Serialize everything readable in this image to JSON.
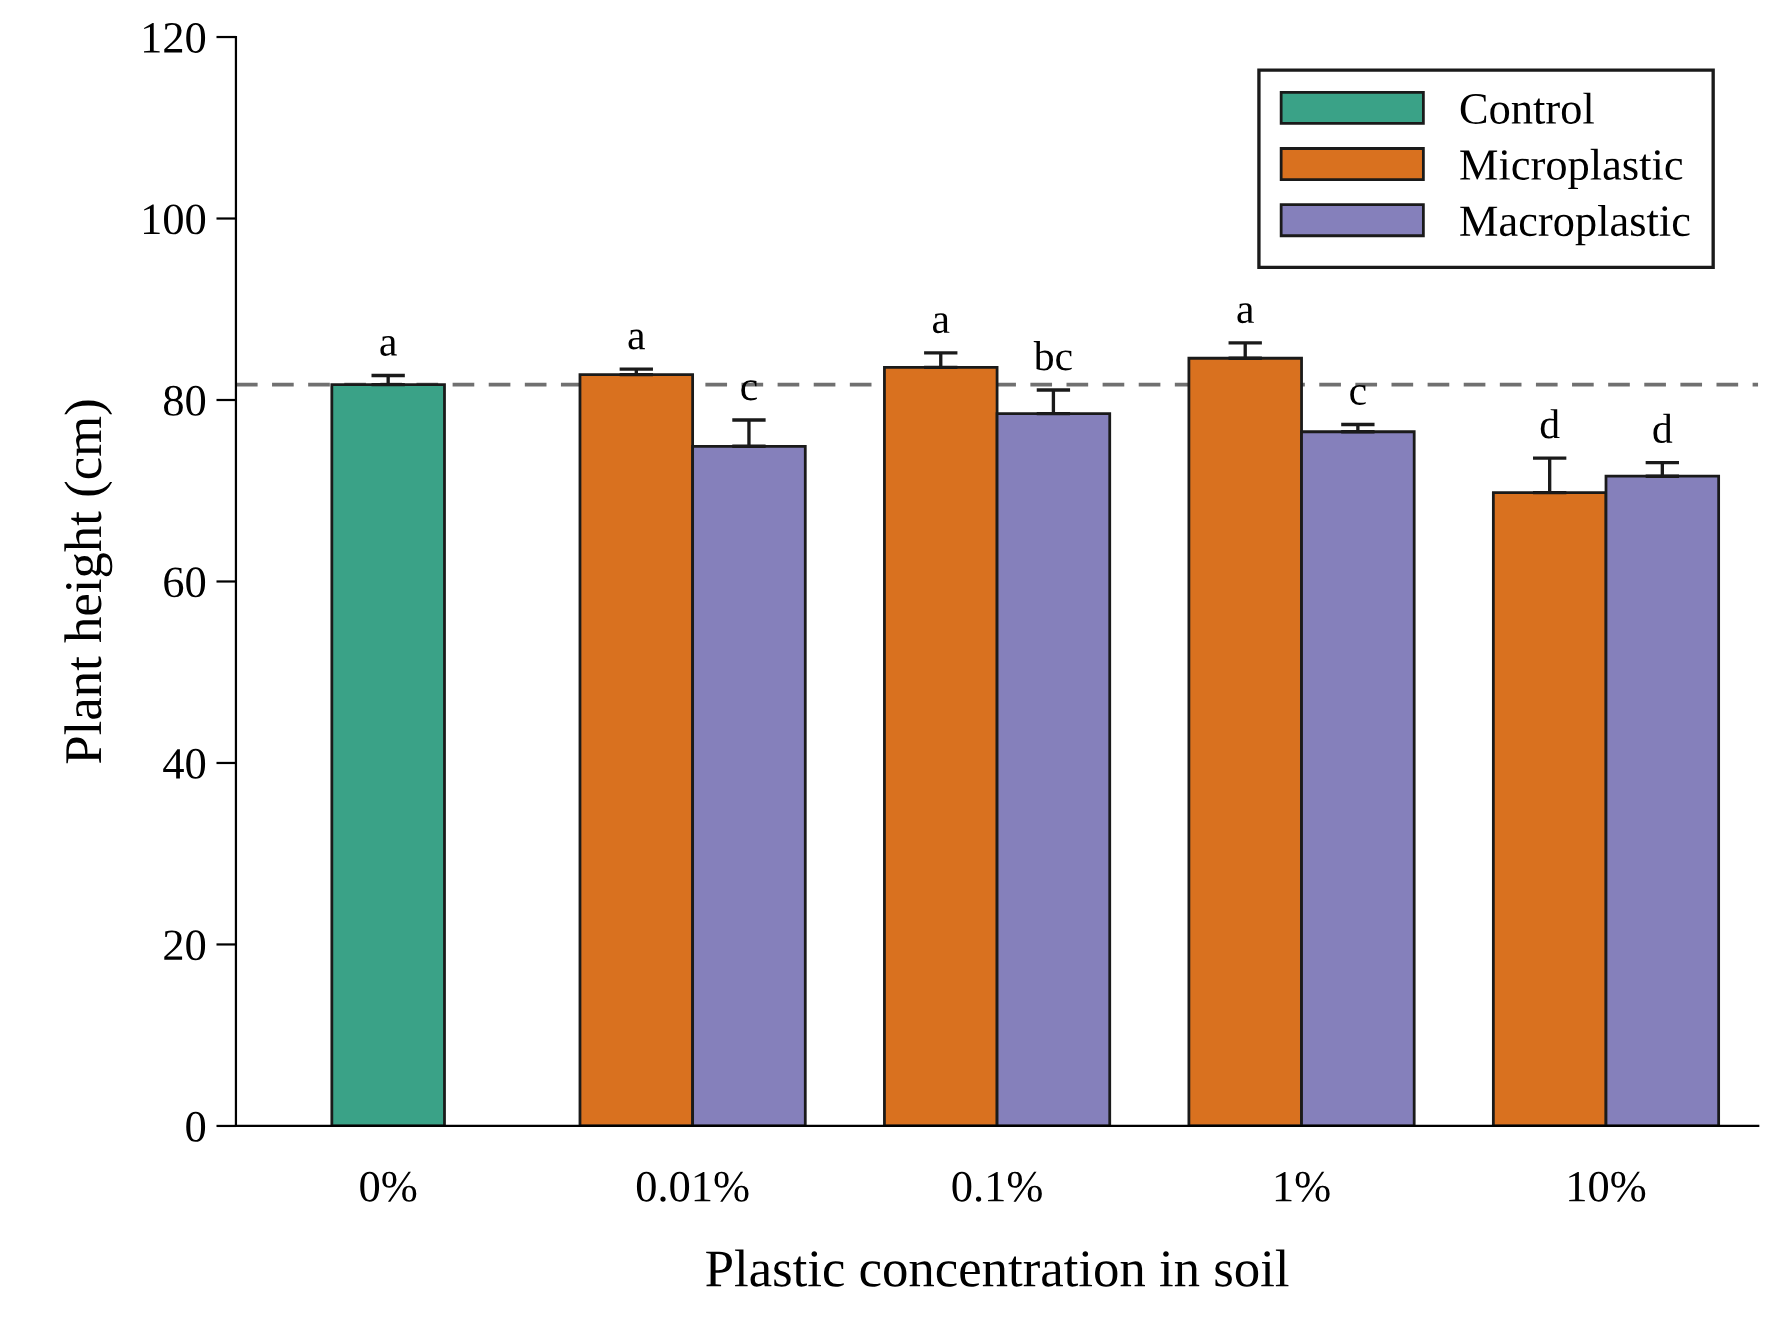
{
  "chart_data": {
    "type": "bar",
    "xlabel": "Plastic concentration in soil",
    "ylabel": "Plant height (cm)",
    "categories": [
      "0%",
      "0.01%",
      "0.1%",
      "1%",
      "10%"
    ],
    "series": [
      {
        "name": "Control",
        "color": "#3aa287",
        "values": [
          81.7,
          null,
          null,
          null,
          null
        ],
        "errors": [
          1.0,
          null,
          null,
          null,
          null
        ],
        "value_labels": [
          "a",
          null,
          null,
          null,
          null
        ]
      },
      {
        "name": "Microplastic",
        "color": "#d9711f",
        "values": [
          null,
          82.8,
          83.6,
          84.6,
          69.8
        ],
        "errors": [
          null,
          0.6,
          1.6,
          1.7,
          3.8
        ],
        "value_labels": [
          null,
          "a",
          "a",
          "a",
          "d"
        ]
      },
      {
        "name": "Macroplastic",
        "color": "#8580bb",
        "values": [
          null,
          74.9,
          78.5,
          76.5,
          71.6
        ],
        "errors": [
          null,
          2.9,
          2.6,
          0.8,
          1.5
        ],
        "value_labels": [
          null,
          "c",
          "bc",
          "c",
          "d"
        ]
      }
    ],
    "ylim": [
      0,
      120
    ],
    "yticks": [
      0,
      20,
      40,
      60,
      80,
      100,
      120
    ],
    "ref_lines": [
      {
        "axis": "y",
        "value": 81.7,
        "color": "#707070",
        "line_style": "dashed"
      }
    ],
    "legend": "top right",
    "grid": false
  }
}
